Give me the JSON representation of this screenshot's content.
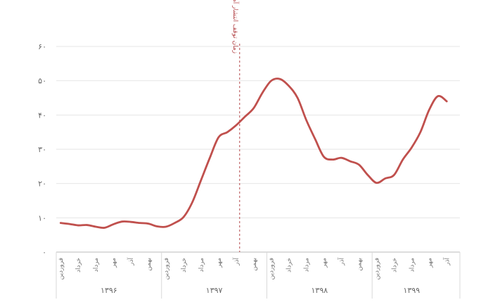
{
  "chart_data": {
    "type": "line",
    "title": "",
    "xlabel": "",
    "ylabel": "",
    "ylim": [
      0,
      60
    ],
    "yticks": [
      "۰",
      "۱۰",
      "۲۰",
      "۳۰",
      "۴۰",
      "۵۰",
      "۶۰"
    ],
    "grid": true,
    "legend": "none",
    "line_color": "#c0504d",
    "grid_color": "#e6e6e6",
    "annotation_color": "#b4474a",
    "x_month_ticks": [
      "فروردین",
      "خرداد",
      "مرداد",
      "مهر",
      "آذر",
      "بهمن",
      "فروردین",
      "خرداد",
      "مرداد",
      "مهر",
      "آذر",
      "بهمن",
      "فروردین",
      "خرداد",
      "مرداد",
      "مهر",
      "آذر",
      "بهمن",
      "فروردین",
      "خرداد",
      "مرداد",
      "مهر",
      "آذر"
    ],
    "year_groups": [
      {
        "label": "۱۳۹۶",
        "start_month": 0,
        "end_month": 12
      },
      {
        "label": "۱۳۹۷",
        "start_month": 12,
        "end_month": 24
      },
      {
        "label": "۱۳۹۸",
        "start_month": 24,
        "end_month": 36
      },
      {
        "label": "۱۳۹۹",
        "start_month": 36,
        "end_month": 45
      }
    ],
    "x_range": [
      -0.5,
      45.5
    ],
    "annotation": {
      "label": "زمان توقف انتشار آمار نرخ تورم",
      "x": 20.4
    },
    "series": [
      {
        "name": "",
        "x": [
          0,
          1,
          2,
          3,
          4,
          5,
          6,
          7,
          8,
          9,
          10,
          11,
          12,
          13,
          14,
          15,
          16,
          17,
          18,
          19,
          20,
          21,
          22,
          23,
          24,
          25,
          26,
          27,
          28,
          29,
          30,
          31,
          32,
          33,
          34,
          35,
          36,
          37,
          38,
          39,
          40,
          41,
          42,
          43,
          44
        ],
        "values": [
          8.5,
          8.2,
          7.8,
          7.9,
          7.4,
          7.1,
          8.1,
          8.9,
          8.8,
          8.5,
          8.3,
          7.5,
          7.4,
          8.5,
          10.2,
          14.5,
          21.0,
          27.5,
          33.5,
          35.0,
          37.0,
          39.5,
          42.0,
          46.5,
          50.0,
          50.5,
          48.5,
          45.0,
          38.5,
          33.0,
          27.8,
          27.0,
          27.5,
          26.5,
          25.5,
          22.5,
          20.2,
          21.5,
          22.5,
          27.0,
          30.5,
          35.0,
          41.5,
          45.5,
          44.0
        ]
      }
    ]
  }
}
